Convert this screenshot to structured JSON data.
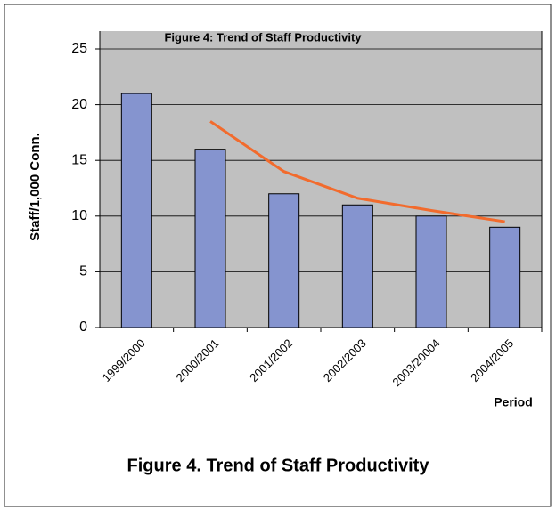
{
  "chart_data": {
    "type": "bar",
    "title": "Figure 4: Trend of Staff Productivity",
    "caption": "Figure 4. Trend of Staff Productivity",
    "y_label": "Staff/1,000 Conn.",
    "x_label": "Period",
    "categories": [
      "1999/2000",
      "2000/2001",
      "2001/2002",
      "2002/2003",
      "2003/20004",
      "2004/2005"
    ],
    "series": [
      {
        "type": "bar",
        "color": "#8594cf",
        "values": [
          21,
          16,
          12,
          11,
          10,
          9
        ]
      },
      {
        "type": "line",
        "color": "#f26b2d",
        "values": [
          null,
          18.5,
          14,
          11.6,
          10.5,
          9.5
        ]
      }
    ],
    "ylim": [
      0,
      25
    ],
    "yticks": [
      0,
      5,
      10,
      15,
      20,
      25
    ],
    "grid": true,
    "plot_background": "#c0c0c0"
  }
}
